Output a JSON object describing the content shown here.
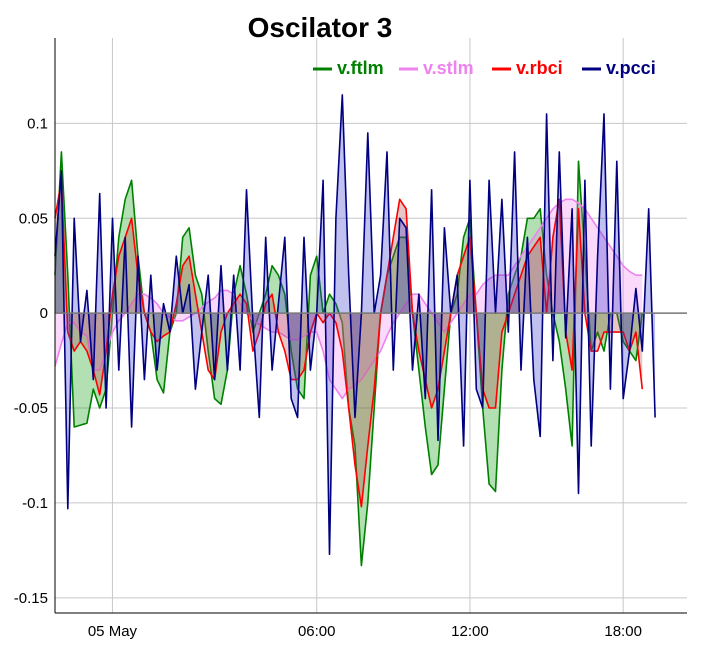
{
  "chart_data": {
    "type": "area",
    "title": "Oscilator 3",
    "xlabel": "",
    "ylabel": "",
    "ylim": [
      -0.158,
      0.145
    ],
    "y_ticks": [
      {
        "value": 0.1,
        "label": "0.1"
      },
      {
        "value": 0.05,
        "label": "0.05"
      },
      {
        "value": 0,
        "label": "0"
      },
      {
        "value": -0.05,
        "label": "-0.05"
      },
      {
        "value": -0.1,
        "label": "-0.1"
      },
      {
        "value": -0.15,
        "label": "-0.15"
      }
    ],
    "x_range_hours": [
      -4.25,
      20.5
    ],
    "x_ticks": [
      {
        "hour": -2,
        "label": "05 May"
      },
      {
        "hour": 6,
        "label": "06:00"
      },
      {
        "hour": 12,
        "label": "12:00"
      },
      {
        "hour": 18,
        "label": "18:00"
      }
    ],
    "x_start": "04 May 19:45",
    "x_step_minutes": 15,
    "grid": true,
    "legend_position": "top-right",
    "series": [
      {
        "name": "v.ftlm",
        "color": "#008000",
        "fill": "#009900",
        "values": [
          0.02,
          0.085,
          0.02,
          -0.06,
          -0.059,
          -0.058,
          -0.04,
          -0.05,
          -0.04,
          0.0,
          0.04,
          0.06,
          0.07,
          0.03,
          0.0,
          -0.01,
          -0.035,
          -0.042,
          -0.01,
          0.0,
          0.04,
          0.045,
          0.02,
          0.01,
          -0.02,
          -0.045,
          -0.048,
          -0.03,
          0.01,
          0.025,
          0.01,
          -0.01,
          0.0,
          0.01,
          0.025,
          0.02,
          0.01,
          -0.02,
          -0.04,
          -0.045,
          0.02,
          0.03,
          0.0,
          0.01,
          0.005,
          -0.005,
          -0.05,
          -0.07,
          -0.133,
          -0.1,
          -0.05,
          0.0,
          0.02,
          0.03,
          0.04,
          0.04,
          0.0,
          -0.03,
          -0.06,
          -0.085,
          -0.08,
          -0.04,
          0.0,
          0.01,
          0.04,
          0.05,
          0.0,
          -0.05,
          -0.09,
          -0.094,
          -0.03,
          0.01,
          0.02,
          0.03,
          0.05,
          0.05,
          0.055,
          0.02,
          0.0,
          -0.015,
          -0.04,
          -0.07,
          0.08,
          0.03,
          -0.02,
          -0.01,
          -0.02,
          0.0,
          0.0,
          -0.015,
          -0.02,
          -0.025,
          0.0
        ]
      },
      {
        "name": "v.stlm",
        "color": "#ee82ee",
        "fill": "#ee82ee",
        "values": [
          -0.028,
          -0.016,
          -0.005,
          -0.005,
          -0.01,
          -0.012,
          -0.03,
          -0.03,
          -0.02,
          -0.01,
          -0.004,
          0.0,
          0.005,
          0.01,
          0.01,
          0.008,
          0.005,
          0.0,
          -0.002,
          -0.004,
          -0.004,
          -0.002,
          0.0,
          0.003,
          0.006,
          0.008,
          0.012,
          0.012,
          0.01,
          0.005,
          0.0,
          -0.004,
          -0.006,
          -0.008,
          -0.01,
          -0.01,
          -0.012,
          -0.014,
          -0.014,
          -0.012,
          -0.01,
          -0.01,
          -0.02,
          -0.035,
          -0.04,
          -0.045,
          -0.04,
          -0.038,
          -0.035,
          -0.03,
          -0.025,
          -0.02,
          -0.012,
          -0.005,
          0.0,
          0.005,
          0.01,
          0.01,
          0.005,
          0.0,
          -0.005,
          -0.01,
          -0.005,
          0.0,
          0.005,
          0.01,
          0.01,
          0.015,
          0.018,
          0.02,
          0.02,
          0.02,
          0.025,
          0.03,
          0.035,
          0.04,
          0.045,
          0.05,
          0.055,
          0.058,
          0.06,
          0.06,
          0.058,
          0.055,
          0.05,
          0.045,
          0.04,
          0.035,
          0.03,
          0.025,
          0.022,
          0.02,
          0.02
        ]
      },
      {
        "name": "v.rbci",
        "color": "#ff0000",
        "fill": "#aa4444",
        "values": [
          0.05,
          0.07,
          -0.01,
          -0.02,
          -0.015,
          -0.02,
          -0.03,
          -0.043,
          -0.02,
          0.01,
          0.03,
          0.04,
          0.05,
          0.02,
          0.0,
          -0.01,
          -0.015,
          -0.012,
          -0.01,
          0.005,
          0.025,
          0.03,
          0.01,
          -0.01,
          -0.03,
          -0.035,
          -0.01,
          0.0,
          0.005,
          0.01,
          0.005,
          -0.02,
          -0.01,
          0.005,
          0.01,
          -0.01,
          -0.02,
          -0.035,
          -0.035,
          -0.03,
          -0.01,
          0.0,
          -0.005,
          0.0,
          -0.005,
          -0.02,
          -0.05,
          -0.08,
          -0.102,
          -0.07,
          -0.04,
          0.0,
          0.02,
          0.04,
          0.06,
          0.055,
          0.0,
          -0.02,
          -0.035,
          -0.05,
          -0.04,
          -0.02,
          0.0,
          0.02,
          0.03,
          0.04,
          0.0,
          -0.04,
          -0.05,
          -0.05,
          -0.01,
          0.0,
          0.01,
          0.02,
          0.03,
          0.035,
          0.04,
          0.0,
          0.04,
          0.06,
          -0.01,
          -0.03,
          0.055,
          0.0,
          -0.02,
          -0.02,
          -0.01,
          -0.01,
          -0.01,
          -0.01,
          -0.02,
          -0.01,
          -0.04
        ]
      },
      {
        "name": "v.pcci",
        "color": "#000080",
        "fill": "#3333cc",
        "values": [
          0.03,
          0.075,
          -0.103,
          0.05,
          -0.015,
          0.012,
          -0.035,
          0.063,
          -0.05,
          0.05,
          -0.03,
          0.04,
          -0.06,
          0.03,
          -0.035,
          0.02,
          -0.03,
          0.005,
          -0.01,
          0.03,
          0.0,
          0.015,
          -0.04,
          -0.01,
          0.02,
          -0.035,
          0.025,
          -0.03,
          0.02,
          -0.03,
          0.065,
          -0.005,
          -0.055,
          0.04,
          -0.03,
          0.005,
          0.04,
          -0.045,
          -0.055,
          0.04,
          -0.03,
          0.0,
          0.07,
          -0.127,
          0.05,
          0.115,
          0.02,
          -0.055,
          0.0,
          0.095,
          0.0,
          0.02,
          0.085,
          -0.03,
          0.05,
          0.045,
          -0.03,
          0.01,
          -0.045,
          0.065,
          -0.067,
          0.045,
          0.0,
          0.02,
          -0.07,
          0.07,
          -0.04,
          -0.05,
          0.07,
          0.0,
          0.06,
          -0.01,
          0.085,
          -0.03,
          0.04,
          -0.035,
          -0.065,
          0.105,
          -0.025,
          0.085,
          -0.013,
          0.055,
          -0.095,
          0.07,
          -0.07,
          0.03,
          0.105,
          -0.04,
          0.08,
          -0.045,
          -0.02,
          0.013,
          -0.02,
          0.055,
          -0.055
        ]
      }
    ]
  }
}
